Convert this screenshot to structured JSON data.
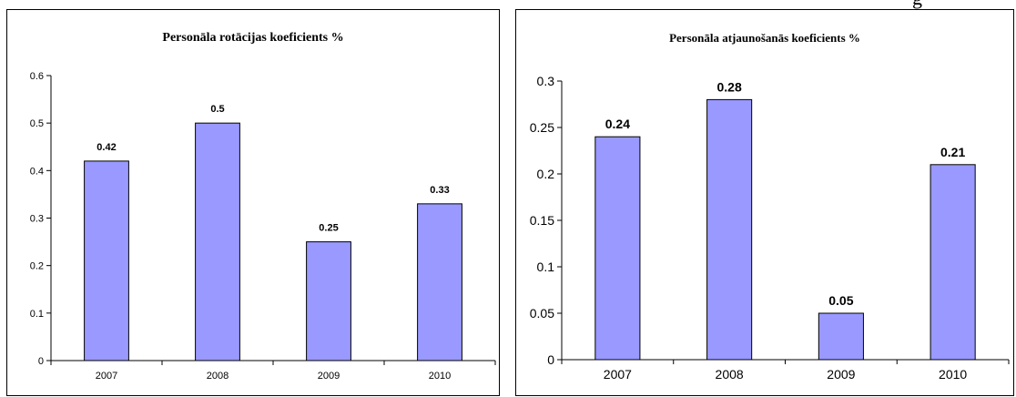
{
  "header_fragment": "g",
  "chart_data": [
    {
      "type": "bar",
      "title": "Personāla rotācijas koeficients %",
      "categories": [
        "2007",
        "2008",
        "2009",
        "2010"
      ],
      "values": [
        0.42,
        0.5,
        0.25,
        0.33
      ],
      "data_labels": [
        "0.42",
        "0.5",
        "0.25",
        "0.33"
      ],
      "yticks": [
        "0",
        "0.1",
        "0.2",
        "0.3",
        "0.4",
        "0.5",
        "0.6"
      ],
      "ylim": [
        0,
        0.6
      ],
      "ytick_step": 0.1,
      "grid": false,
      "bar_color": "#9999ff",
      "bar_edge_color": "#000000"
    },
    {
      "type": "bar",
      "title": "Personāla atjaunošanās koeficients %",
      "categories": [
        "2007",
        "2008",
        "2009",
        "2010"
      ],
      "values": [
        0.24,
        0.28,
        0.05,
        0.21
      ],
      "data_labels": [
        "0.24",
        "0.28",
        "0.05",
        "0.21"
      ],
      "yticks": [
        "0",
        "0.05",
        "0.1",
        "0.15",
        "0.2",
        "0.25",
        "0.3"
      ],
      "ylim": [
        0,
        0.3
      ],
      "ytick_step": 0.05,
      "grid": false,
      "bar_color": "#9999ff",
      "bar_edge_color": "#000000"
    }
  ]
}
